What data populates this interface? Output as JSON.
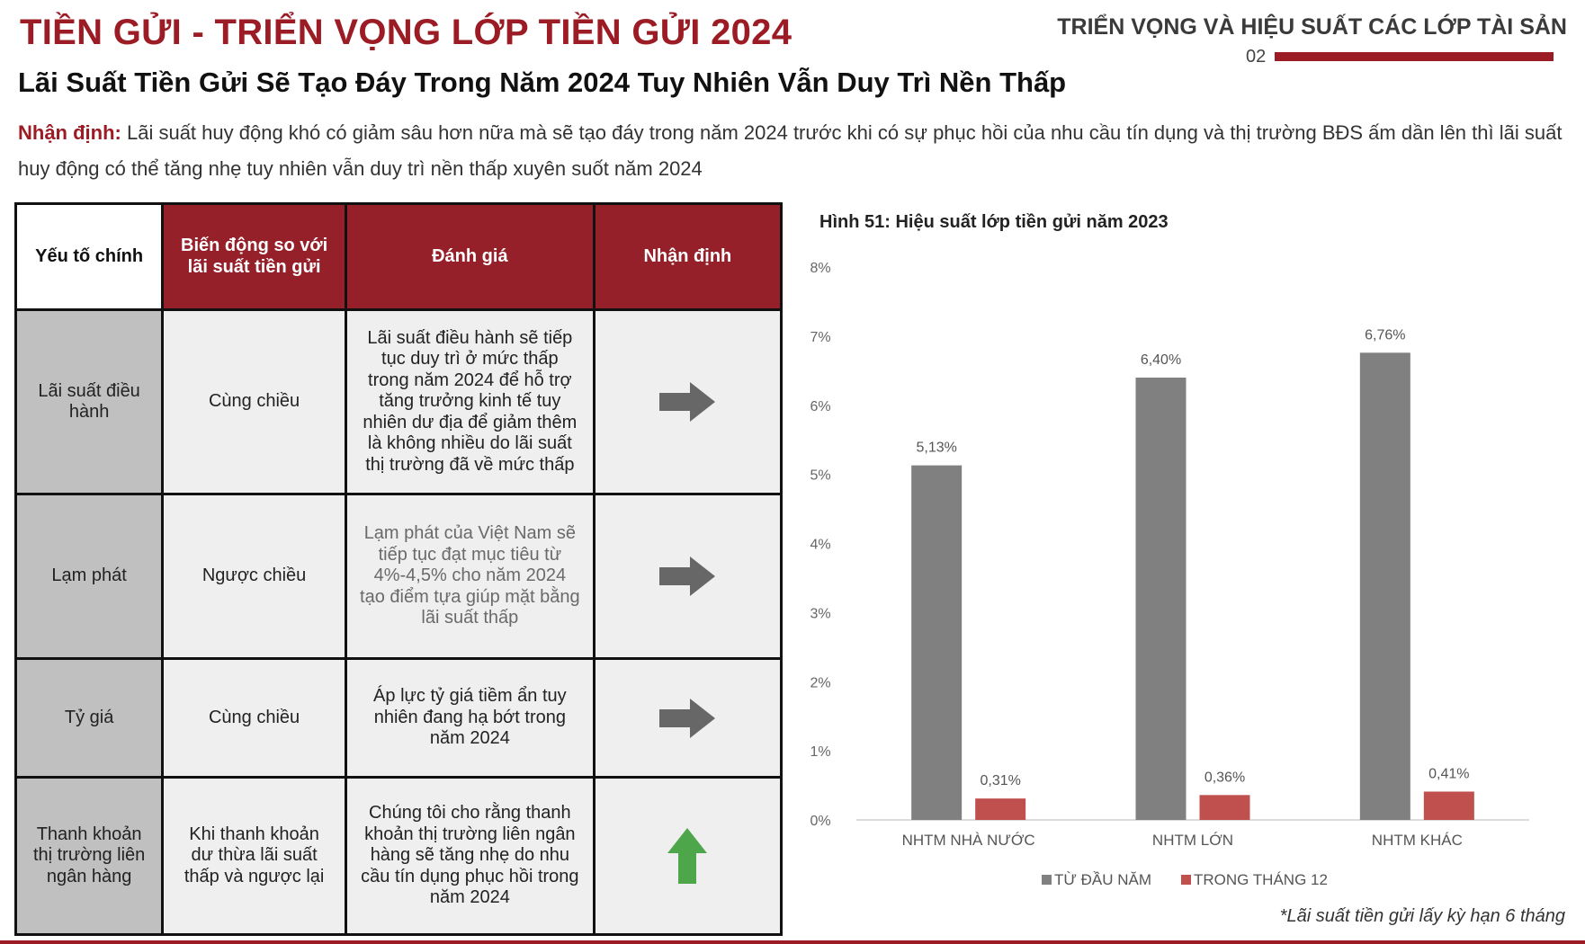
{
  "header": {
    "main_title": "TIỀN GỬI - TRIỂN VỌNG LỚP TIỀN GỬI 2024",
    "section_title": "TRIỂN VỌNG VÀ HIỆU SUẤT CÁC LỚP TÀI SẢN",
    "section_number": "02"
  },
  "subtitle": "Lãi Suất Tiền Gửi Sẽ Tạo Đáy Trong Năm 2024 Tuy Nhiên Vẫn Duy Trì Nền Thấp",
  "insight": {
    "label": "Nhận định:",
    "text": " Lãi suất huy động khó có giảm sâu hơn nữa mà sẽ tạo đáy trong năm 2024 trước khi có sự phục hồi của nhu cầu tín dụng và thị trường BĐS ấm dần lên thì lãi suất huy động có thể tăng nhẹ tuy nhiên vẫn duy trì nền thấp xuyên suốt năm 2024"
  },
  "table": {
    "headers": [
      "Yếu tố chính",
      "Biến động so với lãi suất tiền gửi",
      "Đánh giá",
      "Nhận định"
    ],
    "rows": [
      {
        "factor": "Lãi suất điều hành",
        "direction": "Cùng chiều",
        "assessment": "Lãi suất điều hành sẽ tiếp tục duy trì ở mức thấp trong năm 2024 để hỗ trợ tăng trưởng kinh tế tuy nhiên dư địa để giảm thêm là không nhiều do lãi suất thị trường đã về mức thấp",
        "outlook_icon": "arrow-right-grey-icon"
      },
      {
        "factor": "Lạm phát",
        "direction": "Ngược chiều",
        "assessment": "Lạm phát của Việt Nam sẽ tiếp tục đạt mục tiêu từ 4%-4,5% cho năm 2024 tạo điểm tựa giúp mặt bằng lãi suất thấp",
        "outlook_icon": "arrow-right-grey-icon"
      },
      {
        "factor": "Tỷ giá",
        "direction": "Cùng chiều",
        "assessment": "Áp lực tỷ giá tiềm ẩn tuy nhiên đang hạ bớt trong năm 2024",
        "outlook_icon": "arrow-right-grey-icon"
      },
      {
        "factor": "Thanh khoản thị trường liên ngân hàng",
        "direction": "Khi thanh khoản dư thừa lãi suất thấp và ngược lại",
        "assessment": "Chúng tôi cho rằng thanh khoản thị trường liên ngân hàng sẽ tăng nhẹ do nhu cầu tín dụng phục hồi trong năm 2024",
        "outlook_icon": "arrow-up-green-icon"
      }
    ]
  },
  "chart_data": {
    "type": "bar",
    "title": "Hình 51: Hiệu suất lớp tiền gửi năm 2023",
    "categories": [
      "NHTM NHÀ NƯỚC",
      "NHTM LỚN",
      "NHTM KHÁC"
    ],
    "series": [
      {
        "name": "TỪ ĐẦU NĂM",
        "values": [
          5.13,
          6.4,
          6.76
        ],
        "labels": [
          "5,13%",
          "6,40%",
          "6,76%"
        ],
        "color": "#808080"
      },
      {
        "name": "TRONG THÁNG 12",
        "values": [
          0.31,
          0.36,
          0.41
        ],
        "labels": [
          "0,31%",
          "0,36%",
          "0,41%"
        ],
        "color": "#c0504d"
      }
    ],
    "yticks": [
      "0%",
      "1%",
      "2%",
      "3%",
      "4%",
      "5%",
      "6%",
      "7%",
      "8%"
    ],
    "ylim": [
      0,
      8
    ],
    "grid": false,
    "legend": "bottom"
  },
  "chart_note": "*Lãi suất tiền gửi lấy kỳ hạn 6 tháng",
  "colors": {
    "brand_red": "#9b1c24",
    "header_red": "#95202a",
    "arrow_grey": "#676767",
    "arrow_green": "#4ea64a"
  }
}
